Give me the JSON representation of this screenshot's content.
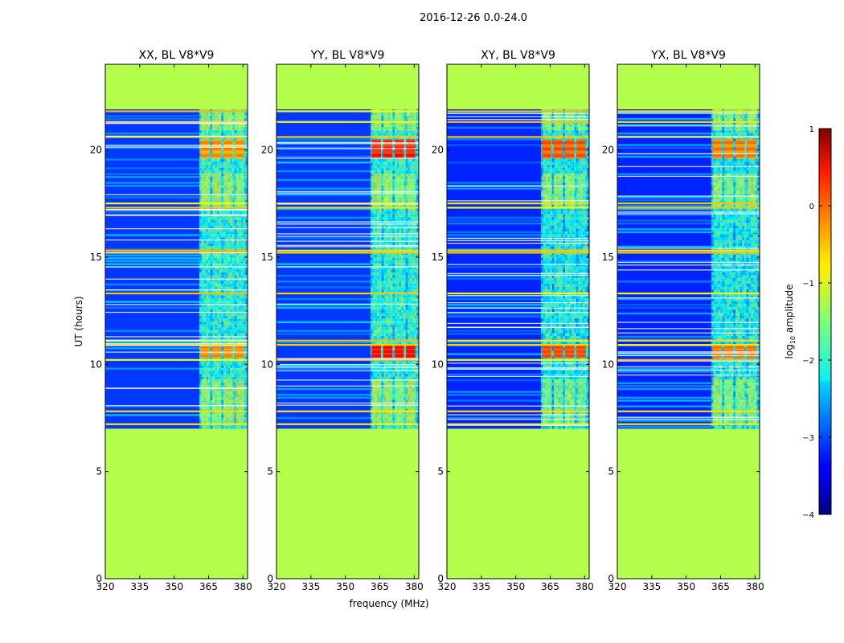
{
  "chart_data": {
    "type": "heatmap",
    "suptitle": "2016-12-26 0.0-24.0",
    "xlabel": "frequency (MHz)",
    "ylabel": "UT (hours)",
    "xlim": [
      320,
      382
    ],
    "ylim": [
      0,
      24
    ],
    "xticks": [
      320,
      335,
      350,
      365,
      380
    ],
    "yticks": [
      0,
      5,
      10,
      15,
      20
    ],
    "xtick_labels": [
      "320",
      "335",
      "350",
      "365",
      "380"
    ],
    "ytick_labels": [
      "0",
      "5",
      "10",
      "15",
      "20"
    ],
    "valid_time_range": [
      7.0,
      21.9
    ],
    "masked_value": -1.25,
    "rfi_band": [
      361,
      382
    ],
    "rfi_channels": [
      [
        361.5,
        365.5
      ],
      [
        366.5,
        370.5
      ],
      [
        371.5,
        375.5
      ],
      [
        376.5,
        380.5
      ]
    ],
    "flagged_rows": [
      21.8,
      21.3,
      20.6,
      17.5,
      17.3,
      15.3,
      15.2,
      13.3,
      11.1,
      10.9,
      10.2,
      7.8,
      7.2
    ],
    "strong_bursts": [
      {
        "t_start": 19.7,
        "t_end": 20.4,
        "log_amp_max": 0.0
      },
      {
        "t_start": 10.3,
        "t_end": 10.8,
        "log_amp_max": 0.0
      }
    ],
    "colorbar": {
      "label": "log",
      "label_sub": "10",
      "label_rest": " amplitude",
      "range": [
        -4,
        1
      ],
      "ticks": [
        1,
        0,
        -1,
        -2,
        -3,
        -4
      ],
      "tick_labels": [
        "1",
        "0",
        "−1",
        "−2",
        "−3",
        "−4"
      ]
    },
    "panels": [
      {
        "title": "XX, BL V8*V9",
        "base_level": -3.1,
        "burst_peak": -0.5
      },
      {
        "title": "YY, BL V8*V9",
        "base_level": -3.1,
        "burst_peak": 0.1
      },
      {
        "title": "XY, BL V8*V9",
        "base_level": -3.2,
        "burst_peak": -0.2
      },
      {
        "title": "YX, BL V8*V9",
        "base_level": -3.2,
        "burst_peak": -0.4
      }
    ]
  }
}
